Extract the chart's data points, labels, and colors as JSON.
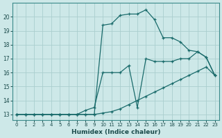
{
  "xlabel": "Humidex (Indice chaleur)",
  "background_color": "#cde8e8",
  "grid_color": "#aacece",
  "line_color": "#1a6b6b",
  "xlim_min": -0.5,
  "xlim_max": 23.5,
  "ylim_min": 12.6,
  "ylim_max": 21.0,
  "xticks": [
    0,
    1,
    2,
    3,
    4,
    5,
    6,
    7,
    8,
    9,
    10,
    11,
    12,
    13,
    14,
    15,
    16,
    17,
    18,
    19,
    20,
    21,
    22,
    23
  ],
  "yticks": [
    13,
    14,
    15,
    16,
    17,
    18,
    19,
    20
  ],
  "line1_x": [
    0,
    1,
    2,
    3,
    4,
    5,
    6,
    7,
    8,
    9,
    10,
    11,
    12,
    13,
    14,
    15,
    16,
    17,
    18,
    19,
    20,
    21,
    22,
    23
  ],
  "line1_y": [
    13,
    13,
    13,
    13,
    13,
    13,
    13,
    13,
    13,
    13,
    13.1,
    13.2,
    13.4,
    13.7,
    14.0,
    14.3,
    14.6,
    14.9,
    15.2,
    15.5,
    15.8,
    16.1,
    16.4,
    15.8
  ],
  "line2_x": [
    0,
    1,
    2,
    3,
    4,
    5,
    6,
    7,
    8,
    9,
    10,
    11,
    12,
    13,
    14,
    15,
    16,
    17,
    18,
    19,
    20,
    21,
    22,
    23
  ],
  "line2_y": [
    13,
    13,
    13,
    13,
    13,
    13,
    13,
    13,
    13,
    13,
    19.4,
    19.5,
    20.1,
    20.2,
    20.2,
    20.5,
    19.8,
    18.5,
    18.5,
    18.2,
    17.6,
    17.5,
    17.1,
    15.8
  ],
  "line3_x": [
    0,
    1,
    2,
    3,
    4,
    5,
    6,
    7,
    8,
    9,
    10,
    11,
    12,
    13,
    14,
    15,
    16,
    17,
    18,
    19,
    20,
    21,
    22,
    23
  ],
  "line3_y": [
    13,
    13,
    13,
    13,
    13,
    13,
    13,
    13,
    13.3,
    13.5,
    16.0,
    16.0,
    16.0,
    16.5,
    13.5,
    17.0,
    16.8,
    16.8,
    16.8,
    17.0,
    17.0,
    17.5,
    17.1,
    15.8
  ]
}
